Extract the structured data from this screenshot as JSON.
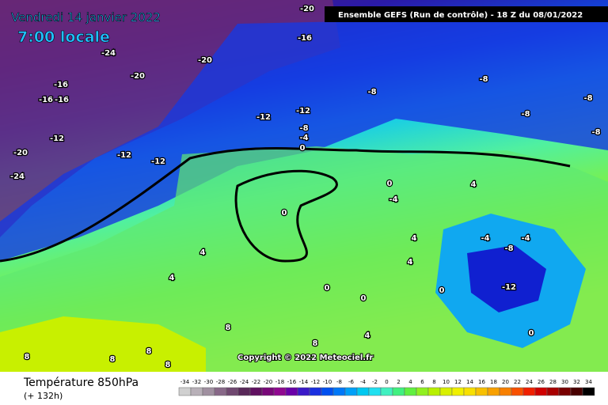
{
  "header": {
    "date": "Vendredi 14 janvier 2022",
    "time": "7:00 locale",
    "run": "Ensemble GEFS  (Run de contrôle)  -  18 Z du 08/01/2022"
  },
  "map": {
    "contour_labels": [
      -24,
      -20,
      -20,
      -16,
      -20,
      -16,
      -16,
      -16,
      -12,
      -12,
      -12,
      -20,
      -24,
      -12,
      -12,
      -8,
      -4,
      0,
      -8,
      -8,
      -8,
      -8,
      -8,
      0,
      0,
      4,
      -4,
      4,
      4,
      -4,
      -4,
      -8,
      -12,
      4,
      4,
      8,
      0,
      0,
      0,
      8,
      8,
      8,
      8,
      8,
      4,
      0
    ],
    "copyright": "Copyright © 2022 Meteociel.fr"
  },
  "legend": {
    "title": "Température 850hPa",
    "lead": "(+ 132h)",
    "levels": [
      -34,
      -32,
      -30,
      -28,
      -26,
      -24,
      -22,
      -20,
      -18,
      -16,
      -14,
      -12,
      -10,
      -8,
      -6,
      -4,
      -2,
      0,
      2,
      4,
      6,
      8,
      10,
      12,
      14,
      16,
      18,
      20,
      22,
      24,
      26,
      28,
      30,
      32,
      34
    ],
    "colors": [
      "#d0d0d0",
      "#b8b0b8",
      "#a090a0",
      "#886888",
      "#704870",
      "#582858",
      "#601060",
      "#780878",
      "#900890",
      "#6a00a8",
      "#3a1ac8",
      "#1a30e0",
      "#0050f0",
      "#0078f8",
      "#00a0f8",
      "#00c8f0",
      "#20e0f0",
      "#40f0c0",
      "#40f080",
      "#60f040",
      "#90f020",
      "#b8f000",
      "#d8f000",
      "#f0f000",
      "#f8e000",
      "#f8c000",
      "#f8a000",
      "#f88000",
      "#f85000",
      "#f02000",
      "#d00000",
      "#a80000",
      "#780000",
      "#480000",
      "#000000"
    ]
  }
}
